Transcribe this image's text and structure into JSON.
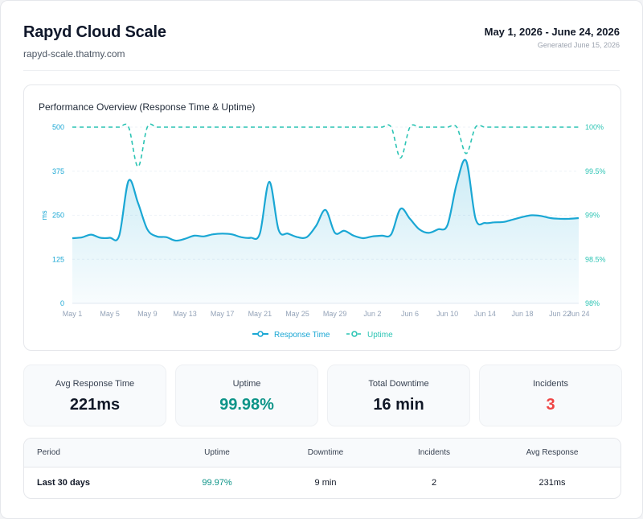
{
  "header": {
    "title": "Rapyd Cloud Scale",
    "url": "rapyd-scale.thatmy.com",
    "date_range": "May 1, 2026 - June 24, 2026",
    "generated": "Generated June 15, 2026"
  },
  "colors": {
    "response": "#1aa7d4",
    "uptime": "#2cc4b4",
    "uptime_good": "#0d9488",
    "incidents": "#ef4444",
    "tick": "#94a3b8"
  },
  "chart_data": {
    "type": "line",
    "title": "Performance Overview (Response Time & Uptime)",
    "ylabel": "ms",
    "ylabel_right": "",
    "ylim": [
      0,
      500
    ],
    "ylim_right": [
      98,
      100
    ],
    "y_ticks": [
      0,
      125,
      250,
      375,
      500
    ],
    "y_ticks_right": [
      "98%",
      "98.5%",
      "99%",
      "99.5%",
      "100%"
    ],
    "x_ticks": [
      "May 1",
      "May 5",
      "May 9",
      "May 13",
      "May 17",
      "May 21",
      "May 25",
      "May 29",
      "Jun 2",
      "Jun 6",
      "Jun 10",
      "Jun 14",
      "Jun 18",
      "Jun 22",
      "Jun 24"
    ],
    "grid": true,
    "legend_position": "bottom",
    "x": [
      "May 1",
      "May 2",
      "May 3",
      "May 4",
      "May 5",
      "May 6",
      "May 7",
      "May 8",
      "May 9",
      "May 10",
      "May 11",
      "May 12",
      "May 13",
      "May 14",
      "May 15",
      "May 16",
      "May 17",
      "May 18",
      "May 19",
      "May 20",
      "May 21",
      "May 22",
      "May 23",
      "May 24",
      "May 25",
      "May 26",
      "May 27",
      "May 28",
      "May 29",
      "May 30",
      "May 31",
      "Jun 1",
      "Jun 2",
      "Jun 3",
      "Jun 4",
      "Jun 5",
      "Jun 6",
      "Jun 7",
      "Jun 8",
      "Jun 9",
      "Jun 10",
      "Jun 11",
      "Jun 12",
      "Jun 13",
      "Jun 14",
      "Jun 15",
      "Jun 16",
      "Jun 17",
      "Jun 18",
      "Jun 19",
      "Jun 20",
      "Jun 21",
      "Jun 22",
      "Jun 23",
      "Jun 24"
    ],
    "series": [
      {
        "name": "Response Time",
        "axis": "left",
        "values": [
          185,
          187,
          195,
          186,
          186,
          192,
          348,
          285,
          210,
          190,
          188,
          178,
          183,
          192,
          190,
          196,
          198,
          196,
          188,
          186,
          198,
          345,
          208,
          198,
          188,
          188,
          220,
          265,
          200,
          206,
          192,
          185,
          190,
          192,
          196,
          268,
          240,
          210,
          200,
          210,
          222,
          340,
          404,
          240,
          228,
          230,
          231,
          238,
          245,
          250,
          248,
          242,
          240,
          240,
          242
        ]
      },
      {
        "name": "Uptime",
        "axis": "right",
        "values": [
          100,
          100,
          100,
          100,
          100,
          100,
          100,
          99.55,
          100,
          100,
          100,
          100,
          100,
          100,
          100,
          100,
          100,
          100,
          100,
          100,
          100,
          100,
          100,
          100,
          100,
          100,
          100,
          100,
          100,
          100,
          100,
          100,
          100,
          100,
          100,
          99.65,
          100,
          100,
          100,
          100,
          100,
          100,
          99.7,
          100,
          100,
          100,
          100,
          100,
          100,
          100,
          100,
          100,
          100,
          100,
          100
        ]
      }
    ]
  },
  "kpis": [
    {
      "label": "Avg Response Time",
      "value": "221ms",
      "tone": "default"
    },
    {
      "label": "Uptime",
      "value": "99.98%",
      "tone": "good"
    },
    {
      "label": "Total Downtime",
      "value": "16 min",
      "tone": "default"
    },
    {
      "label": "Incidents",
      "value": "3",
      "tone": "bad"
    }
  ],
  "table": {
    "columns": [
      "Period",
      "Uptime",
      "Downtime",
      "Incidents",
      "Avg Response"
    ],
    "rows": [
      {
        "period": "Last 30 days",
        "uptime": "99.97%",
        "downtime": "9 min",
        "incidents": "2",
        "avg_response": "231ms"
      }
    ]
  }
}
